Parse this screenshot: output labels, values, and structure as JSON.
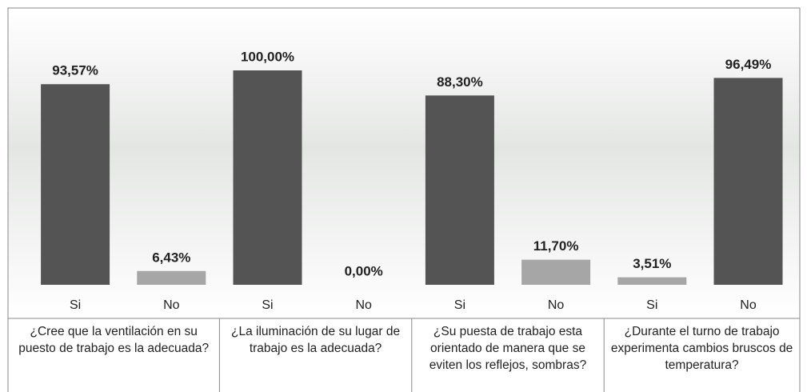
{
  "chart_data": {
    "type": "bar",
    "categories": [
      "Si",
      "No",
      "Si",
      "No",
      "Si",
      "No",
      "Si",
      "No"
    ],
    "values": [
      93.57,
      6.43,
      100,
      0,
      88.3,
      11.7,
      3.51,
      96.49
    ],
    "value_labels": [
      "93,57%",
      "6,43%",
      "100,00%",
      "0,00%",
      "88,30%",
      "11,70%",
      "3,51%",
      "96,49%"
    ],
    "colors": [
      "#545454",
      "#a6a6a6",
      "#545454",
      "#a6a6a6",
      "#545454",
      "#a6a6a6",
      "#a6a6a6",
      "#545454"
    ],
    "groups": [
      "¿Cree que la ventilación en su puesto de trabajo es la adecuada?",
      "¿La iluminación de su lugar de trabajo es la adecuada?",
      "¿Su puesta de trabajo esta orientado de manera que se eviten los reflejos, sombras?",
      "¿Durante el turno de trabajo experimenta cambios bruscos de temperatura?"
    ],
    "ylim": [
      0,
      100
    ]
  }
}
